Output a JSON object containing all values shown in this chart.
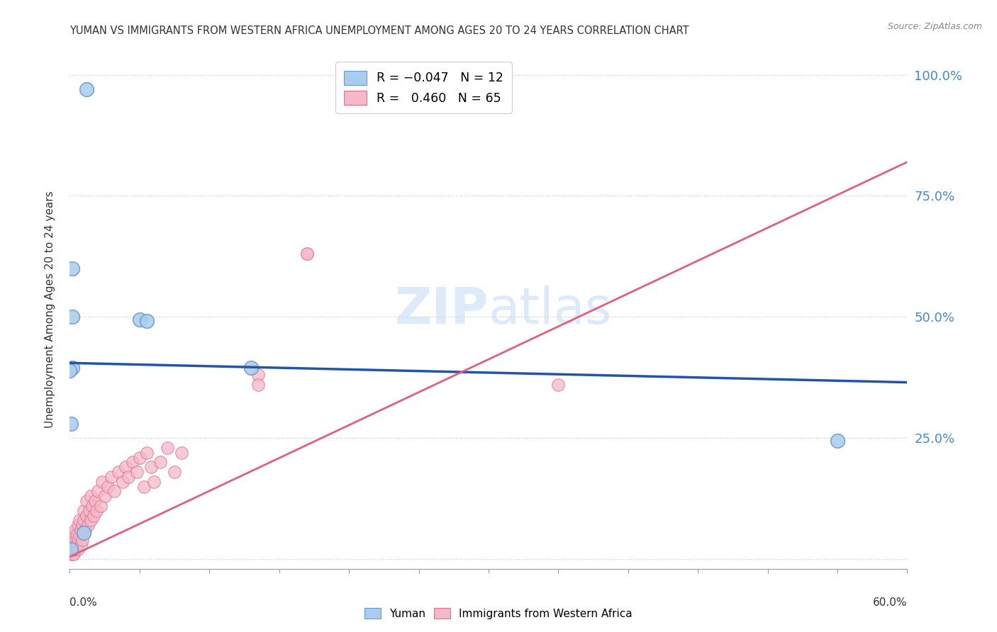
{
  "title": "YUMAN VS IMMIGRANTS FROM WESTERN AFRICA UNEMPLOYMENT AMONG AGES 20 TO 24 YEARS CORRELATION CHART",
  "source": "Source: ZipAtlas.com",
  "ylabel": "Unemployment Among Ages 20 to 24 years",
  "yticks": [
    0.0,
    0.25,
    0.5,
    0.75,
    1.0
  ],
  "ytick_labels": [
    "",
    "25.0%",
    "50.0%",
    "75.0%",
    "100.0%"
  ],
  "xlim": [
    0.0,
    0.6
  ],
  "ylim": [
    -0.02,
    1.05
  ],
  "watermark": "ZIPatlas",
  "series_yuman": {
    "color": "#aaccee",
    "edge_color": "#6699cc",
    "points": [
      [
        0.012,
        0.97
      ],
      [
        0.002,
        0.6
      ],
      [
        0.002,
        0.5
      ],
      [
        0.05,
        0.495
      ],
      [
        0.055,
        0.492
      ],
      [
        0.002,
        0.395
      ],
      [
        0.0,
        0.39
      ],
      [
        0.13,
        0.395
      ],
      [
        0.001,
        0.28
      ],
      [
        0.55,
        0.245
      ],
      [
        0.01,
        0.055
      ],
      [
        0.001,
        0.02
      ]
    ],
    "trend_x": [
      0.0,
      0.6
    ],
    "trend_y": [
      0.405,
      0.365
    ]
  },
  "series_immigrants": {
    "color": "#f5b8c8",
    "edge_color": "#e07090",
    "trend_x": [
      0.0,
      0.6
    ],
    "trend_y": [
      0.005,
      0.82
    ]
  },
  "immigrants_points": [
    [
      0.001,
      0.01
    ],
    [
      0.001,
      0.02
    ],
    [
      0.001,
      0.03
    ],
    [
      0.002,
      0.04
    ],
    [
      0.002,
      0.01
    ],
    [
      0.002,
      0.02
    ],
    [
      0.003,
      0.03
    ],
    [
      0.003,
      0.05
    ],
    [
      0.003,
      0.01
    ],
    [
      0.003,
      0.02
    ],
    [
      0.004,
      0.04
    ],
    [
      0.004,
      0.02
    ],
    [
      0.004,
      0.06
    ],
    [
      0.005,
      0.03
    ],
    [
      0.005,
      0.05
    ],
    [
      0.006,
      0.04
    ],
    [
      0.006,
      0.07
    ],
    [
      0.006,
      0.02
    ],
    [
      0.007,
      0.05
    ],
    [
      0.007,
      0.08
    ],
    [
      0.008,
      0.06
    ],
    [
      0.008,
      0.03
    ],
    [
      0.009,
      0.07
    ],
    [
      0.009,
      0.04
    ],
    [
      0.01,
      0.08
    ],
    [
      0.01,
      0.1
    ],
    [
      0.011,
      0.06
    ],
    [
      0.012,
      0.09
    ],
    [
      0.012,
      0.12
    ],
    [
      0.013,
      0.07
    ],
    [
      0.014,
      0.1
    ],
    [
      0.015,
      0.08
    ],
    [
      0.015,
      0.13
    ],
    [
      0.016,
      0.11
    ],
    [
      0.017,
      0.09
    ],
    [
      0.018,
      0.12
    ],
    [
      0.019,
      0.1
    ],
    [
      0.02,
      0.14
    ],
    [
      0.022,
      0.11
    ],
    [
      0.023,
      0.16
    ],
    [
      0.025,
      0.13
    ],
    [
      0.027,
      0.15
    ],
    [
      0.03,
      0.17
    ],
    [
      0.032,
      0.14
    ],
    [
      0.035,
      0.18
    ],
    [
      0.038,
      0.16
    ],
    [
      0.04,
      0.19
    ],
    [
      0.042,
      0.17
    ],
    [
      0.045,
      0.2
    ],
    [
      0.048,
      0.18
    ],
    [
      0.05,
      0.21
    ],
    [
      0.053,
      0.15
    ],
    [
      0.055,
      0.22
    ],
    [
      0.058,
      0.19
    ],
    [
      0.06,
      0.16
    ],
    [
      0.065,
      0.2
    ],
    [
      0.07,
      0.23
    ],
    [
      0.075,
      0.18
    ],
    [
      0.08,
      0.22
    ],
    [
      0.17,
      0.63
    ],
    [
      0.17,
      0.63
    ],
    [
      0.135,
      0.38
    ],
    [
      0.135,
      0.36
    ],
    [
      0.35,
      0.36
    ]
  ]
}
